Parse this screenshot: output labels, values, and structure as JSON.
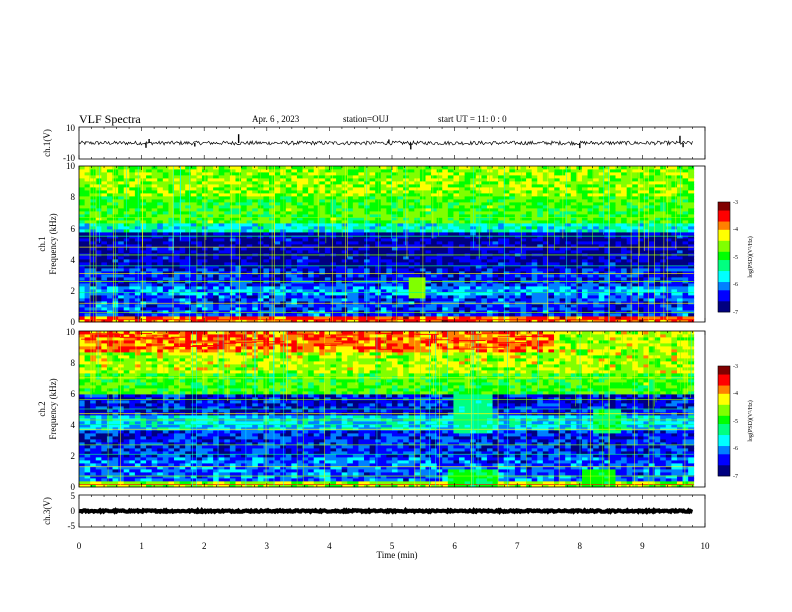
{
  "header": {
    "title": "VLF Spectra",
    "date": "Apr. 6  , 2023",
    "station": "station=OUJ",
    "start_ut": "start  UT  =   11: 0  : 0"
  },
  "colors": {
    "scale": [
      "#000080",
      "#0000ff",
      "#0080ff",
      "#00ffff",
      "#00ff80",
      "#00ff00",
      "#80ff00",
      "#ffff00",
      "#ff8000",
      "#ff0000",
      "#800000"
    ],
    "trace": "#000000"
  },
  "chart_data": [
    {
      "type": "line",
      "id": "ch1-waveform",
      "ylabel": "ch.1(V)",
      "ylim": [
        -10,
        10
      ],
      "yticks": [
        "10",
        "-10"
      ],
      "xlim": [
        0,
        10
      ],
      "baseline": 0,
      "noise_amplitude": 1.2,
      "spikes": [
        {
          "t": 1.07,
          "v": -3
        },
        {
          "t": 1.12,
          "v": 2.5
        },
        {
          "t": 1.85,
          "v": -2.2
        },
        {
          "t": 2.55,
          "v": 5.5
        },
        {
          "t": 4.95,
          "v": 2.2
        },
        {
          "t": 5.3,
          "v": -4
        },
        {
          "t": 8.0,
          "v": -3.2
        },
        {
          "t": 9.6,
          "v": 4.5
        },
        {
          "t": 9.65,
          "v": -2.6
        }
      ]
    },
    {
      "type": "heatmap",
      "id": "ch1-spectrogram",
      "ylabel": "Frequency (kHz)",
      "channel_label": "ch.1",
      "ylim": [
        0,
        10
      ],
      "yticks": [
        "0",
        "2",
        "4",
        "6",
        "8",
        "10"
      ],
      "xlim": [
        0,
        10
      ],
      "colorbar": {
        "label": "log(PSD)(V²/Hz)",
        "min": -7,
        "max": -3,
        "ticks": [
          "-3",
          "-4",
          "-5",
          "-6",
          "-7"
        ]
      },
      "bands": [
        {
          "f0": 0,
          "f1": 0.4,
          "level": -3.8
        },
        {
          "f0": 0.4,
          "f1": 1.8,
          "level": -6.3
        },
        {
          "f0": 1.8,
          "f1": 2.4,
          "level": -6.0
        },
        {
          "f0": 2.4,
          "f1": 3.5,
          "level": -6.4
        },
        {
          "f0": 3.5,
          "f1": 5.8,
          "level": -6.7
        },
        {
          "f0": 5.8,
          "f1": 6.3,
          "level": -5.6
        },
        {
          "f0": 6.3,
          "f1": 8.0,
          "level": -4.9
        },
        {
          "f0": 8.0,
          "f1": 10,
          "level": -4.6
        }
      ]
    },
    {
      "type": "heatmap",
      "id": "ch2-spectrogram",
      "ylabel": "Frequency (kHz)",
      "channel_label": "ch.2",
      "ylim": [
        0,
        10
      ],
      "yticks": [
        "0",
        "2",
        "4",
        "6",
        "8",
        "10"
      ],
      "xlim": [
        0,
        10
      ],
      "colorbar": {
        "label": "log(PSD)(V²/Hz)",
        "min": -7,
        "max": -3,
        "ticks": [
          "-3",
          "-4",
          "-5",
          "-6",
          "-7"
        ]
      },
      "bands": [
        {
          "f0": 0,
          "f1": 0.4,
          "level": -4.6
        },
        {
          "f0": 0.4,
          "f1": 2.0,
          "level": -6.2
        },
        {
          "f0": 2.0,
          "f1": 3.6,
          "level": -6.4
        },
        {
          "f0": 3.6,
          "f1": 4.6,
          "level": -5.8
        },
        {
          "f0": 4.6,
          "f1": 6.0,
          "level": -6.5
        },
        {
          "f0": 6.0,
          "f1": 7.4,
          "level": -4.9
        },
        {
          "f0": 7.4,
          "f1": 8.6,
          "level": -4.5
        },
        {
          "f0": 8.6,
          "f1": 10,
          "level": -3.9
        }
      ]
    },
    {
      "type": "line",
      "id": "ch3-waveform",
      "ylabel": "ch.3(V)",
      "ylim": [
        -5,
        5
      ],
      "yticks": [
        "5",
        "0",
        "-5"
      ],
      "xlim": [
        0,
        10
      ],
      "baseline": 0,
      "noise_amplitude": 0.25,
      "spikes": []
    }
  ],
  "xaxis": {
    "label": "Time (min)",
    "ticks": [
      "0",
      "1",
      "2",
      "3",
      "4",
      "5",
      "6",
      "7",
      "8",
      "9",
      "10"
    ]
  }
}
